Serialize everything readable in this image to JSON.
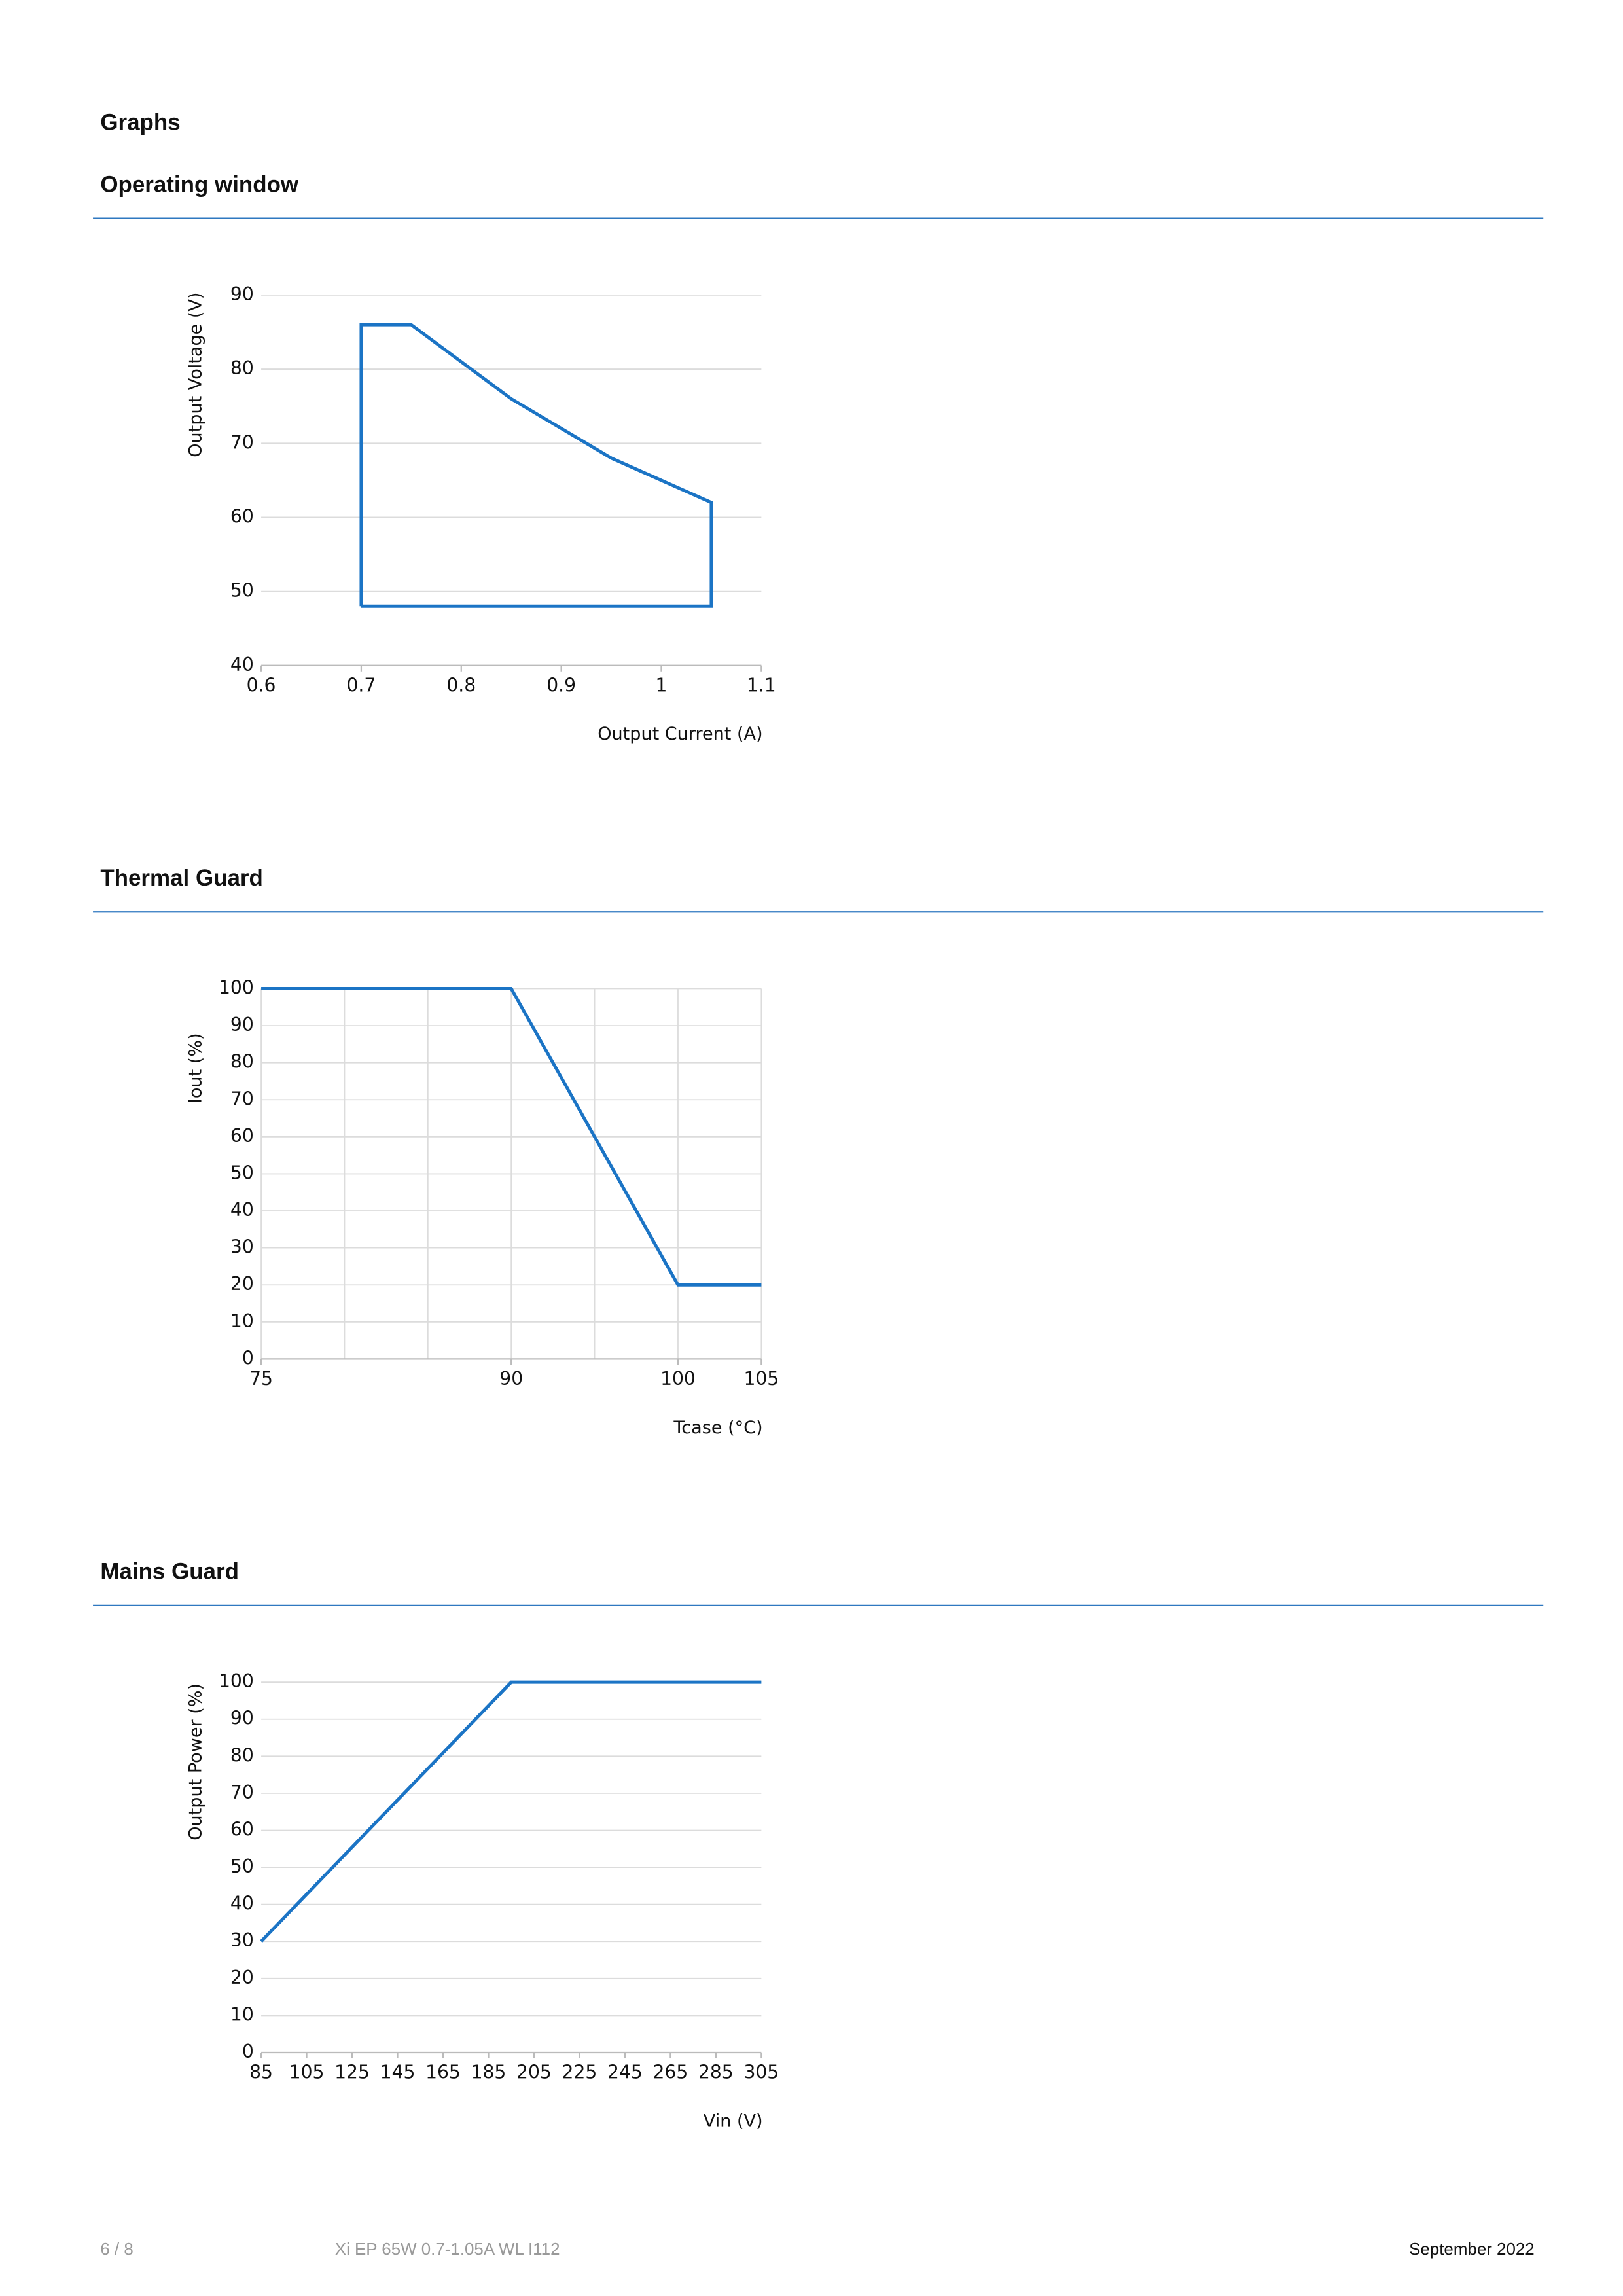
{
  "heading": "Graphs",
  "chart_data": [
    {
      "type": "line",
      "title": "Operating window",
      "x_label": "Output Current (A)",
      "y_label": "Output Voltage (V)",
      "x": [
        0.7,
        0.7,
        0.75,
        0.85,
        0.95,
        1.05,
        1.05,
        0.7
      ],
      "values": [
        48,
        86,
        86,
        76,
        68,
        62,
        48,
        48
      ],
      "color": "#1b74c5",
      "xlim": [
        0.6,
        1.1
      ],
      "ylim": [
        40,
        90
      ],
      "xticks": [
        0.6,
        0.7,
        0.8,
        0.9,
        1,
        1.1
      ],
      "yticks": [
        40,
        50,
        60,
        70,
        80,
        90
      ],
      "grid": "y"
    },
    {
      "type": "line",
      "title": "Thermal Guard",
      "x_label": "Tcase (°C)",
      "y_label": "Iout (%)",
      "x": [
        75,
        90,
        100,
        105
      ],
      "values": [
        100,
        100,
        20,
        20
      ],
      "color": "#1b74c5",
      "xlim": [
        75,
        105
      ],
      "ylim": [
        0,
        100
      ],
      "xticks": [
        75,
        90,
        100,
        105
      ],
      "yticks": [
        0,
        10,
        20,
        30,
        40,
        50,
        60,
        70,
        80,
        90,
        100
      ],
      "grid": "both",
      "xgrid": [
        75,
        80,
        85,
        90,
        95,
        100,
        105
      ]
    },
    {
      "type": "line",
      "title": "Mains Guard",
      "x_label": "Vin (V)",
      "y_label": "Output Power (%)",
      "x": [
        85,
        195,
        305
      ],
      "values": [
        30,
        100,
        100
      ],
      "color": "#1b74c5",
      "xlim": [
        85,
        305
      ],
      "ylim": [
        0,
        100
      ],
      "xticks": [
        85,
        105,
        125,
        145,
        165,
        185,
        205,
        225,
        245,
        265,
        285,
        305
      ],
      "yticks": [
        0,
        10,
        20,
        30,
        40,
        50,
        60,
        70,
        80,
        90,
        100
      ],
      "grid": "y"
    }
  ],
  "footer": {
    "page": "6 / 8",
    "product": "Xi EP 65W 0.7-1.05A WL I112",
    "date": "September 2022"
  }
}
